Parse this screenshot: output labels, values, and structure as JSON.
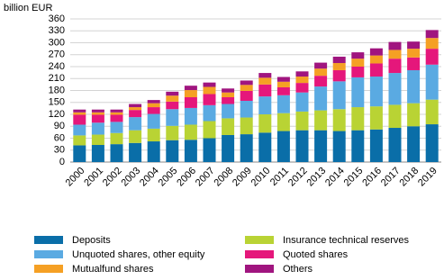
{
  "chart_data": {
    "type": "stacked-bar",
    "y_label": "billion EUR",
    "categories": [
      "2000",
      "2001",
      "2002",
      "2003",
      "2004",
      "2005",
      "2006",
      "2007",
      "2008",
      "2009",
      "2010",
      "2011",
      "2012",
      "2013",
      "2014",
      "2015",
      "2016",
      "2017",
      "2018",
      "2019"
    ],
    "series": [
      {
        "name": "Deposits",
        "color": "#0a6ea8",
        "values": [
          42,
          43,
          45,
          48,
          52,
          55,
          56,
          60,
          68,
          70,
          74,
          78,
          80,
          80,
          78,
          80,
          82,
          86,
          90,
          95
        ]
      },
      {
        "name": "Insurance technical reserves",
        "color": "#b9d334",
        "values": [
          25,
          26,
          28,
          32,
          32,
          36,
          38,
          43,
          42,
          42,
          46,
          45,
          47,
          50,
          55,
          58,
          58,
          58,
          58,
          62
        ]
      },
      {
        "name": "Unquoted shares, other equity",
        "color": "#5aaae2",
        "values": [
          27,
          30,
          28,
          33,
          37,
          42,
          42,
          40,
          36,
          42,
          45,
          45,
          48,
          60,
          70,
          75,
          75,
          80,
          83,
          88
        ]
      },
      {
        "name": "Quoted shares",
        "color": "#e5177b",
        "values": [
          25,
          20,
          18,
          18,
          17,
          19,
          27,
          28,
          17,
          25,
          30,
          20,
          24,
          27,
          28,
          27,
          33,
          36,
          32,
          40
        ]
      },
      {
        "name": "Mutualfund shares",
        "color": "#f5a024",
        "values": [
          6,
          6,
          6,
          7,
          10,
          15,
          18,
          18,
          12,
          15,
          17,
          14,
          16,
          18,
          18,
          20,
          20,
          22,
          22,
          27
        ]
      },
      {
        "name": "Others",
        "color": "#a0157f",
        "values": [
          7,
          7,
          7,
          8,
          8,
          10,
          11,
          11,
          10,
          11,
          12,
          12,
          13,
          15,
          16,
          16,
          18,
          20,
          18,
          20
        ]
      }
    ],
    "ylim": [
      0,
      360
    ],
    "yticks": [
      0,
      30,
      60,
      90,
      120,
      150,
      180,
      210,
      240,
      270,
      300,
      330,
      360
    ],
    "grid": true
  }
}
